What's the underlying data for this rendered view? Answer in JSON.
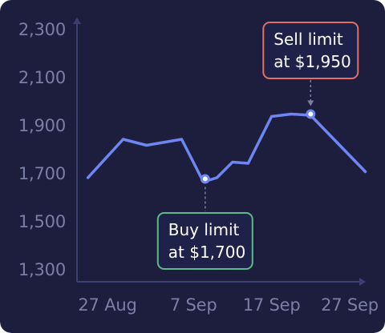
{
  "colors": {
    "background": "#1d1e3d",
    "axis": "#3c4070",
    "tick_text": "#7b7fa6",
    "line": "#6d86f2",
    "buy": "#5fb98a",
    "sell": "#e06f66",
    "callout_bg": "#1e2148",
    "callout_text": "#ffffff",
    "marker_fill": "#ffffff"
  },
  "chart_data": {
    "type": "line",
    "title": "",
    "xlabel": "",
    "ylabel": "",
    "ylim": [
      1200,
      2400
    ],
    "yticks": [
      2300,
      2100,
      1900,
      1700,
      1500,
      1300
    ],
    "ytick_labels": [
      "2,300",
      "2,100",
      "1,900",
      "1,700",
      "1,500",
      "1,300"
    ],
    "xlim": [
      -3,
      35
    ],
    "xticks": [
      0,
      11,
      21,
      31
    ],
    "xtick_labels": [
      "27 Aug",
      "7 Sep",
      "17 Sep",
      "27 Sep"
    ],
    "grid": false,
    "series": [
      {
        "x": [
          -2.5,
          2,
          5,
          9.5,
          12,
          13,
          14,
          16,
          18,
          21,
          23.5,
          26,
          33
        ],
        "y": [
          1680,
          1840,
          1815,
          1840,
          1680,
          1670,
          1680,
          1745,
          1740,
          1935,
          1945,
          1940,
          1705
        ]
      }
    ],
    "annotations": [
      {
        "id": "sell",
        "lines": [
          "Sell limit",
          "at $1,950"
        ],
        "x": 26,
        "y": 1945
      },
      {
        "id": "buy",
        "lines": [
          "Buy limit",
          "at $1,700"
        ],
        "x": 12.5,
        "y": 1675
      }
    ]
  }
}
